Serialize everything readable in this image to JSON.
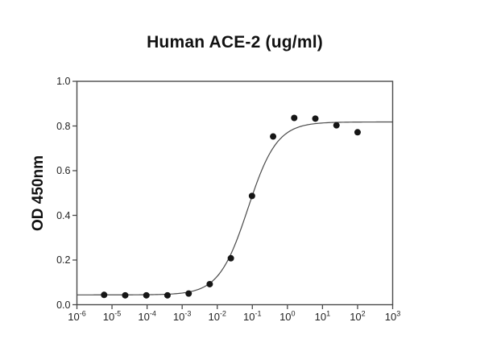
{
  "chart_data": {
    "type": "scatter",
    "title": "Human ACE-2 (ug/ml)",
    "xlabel": "",
    "ylabel": "OD 450nm",
    "x_scale": "log10",
    "xlim": [
      1e-06,
      1000.0
    ],
    "ylim": [
      0.0,
      1.0
    ],
    "grid": false,
    "legend": "none",
    "y_ticks": [
      0.0,
      0.2,
      0.4,
      0.6,
      0.8,
      1.0
    ],
    "x_tick_exponents": [
      -6,
      -5,
      -4,
      -3,
      -2,
      -1,
      0,
      1,
      2,
      3
    ],
    "points": [
      {
        "x": 5.96e-06,
        "y": 0.044
      },
      {
        "x": 2.38e-05,
        "y": 0.042
      },
      {
        "x": 9.54e-05,
        "y": 0.042
      },
      {
        "x": 0.000381,
        "y": 0.042
      },
      {
        "x": 0.00153,
        "y": 0.05
      },
      {
        "x": 0.0061,
        "y": 0.092
      },
      {
        "x": 0.0244,
        "y": 0.208
      },
      {
        "x": 0.0977,
        "y": 0.487
      },
      {
        "x": 0.391,
        "y": 0.753
      },
      {
        "x": 1.5625,
        "y": 0.836
      },
      {
        "x": 6.25,
        "y": 0.833
      },
      {
        "x": 25,
        "y": 0.803
      },
      {
        "x": 100,
        "y": 0.772
      }
    ],
    "fit_curve": {
      "model": "4PL",
      "bottom": 0.044,
      "top": 0.818,
      "ec50": 0.075,
      "hill": 1.05
    },
    "colors": {
      "background": "#ffffff",
      "axis": "#4a4a4a",
      "curve": "#4a4a4a",
      "points": "#161616",
      "tick_text": "#222222",
      "title_text": "#111111"
    }
  }
}
